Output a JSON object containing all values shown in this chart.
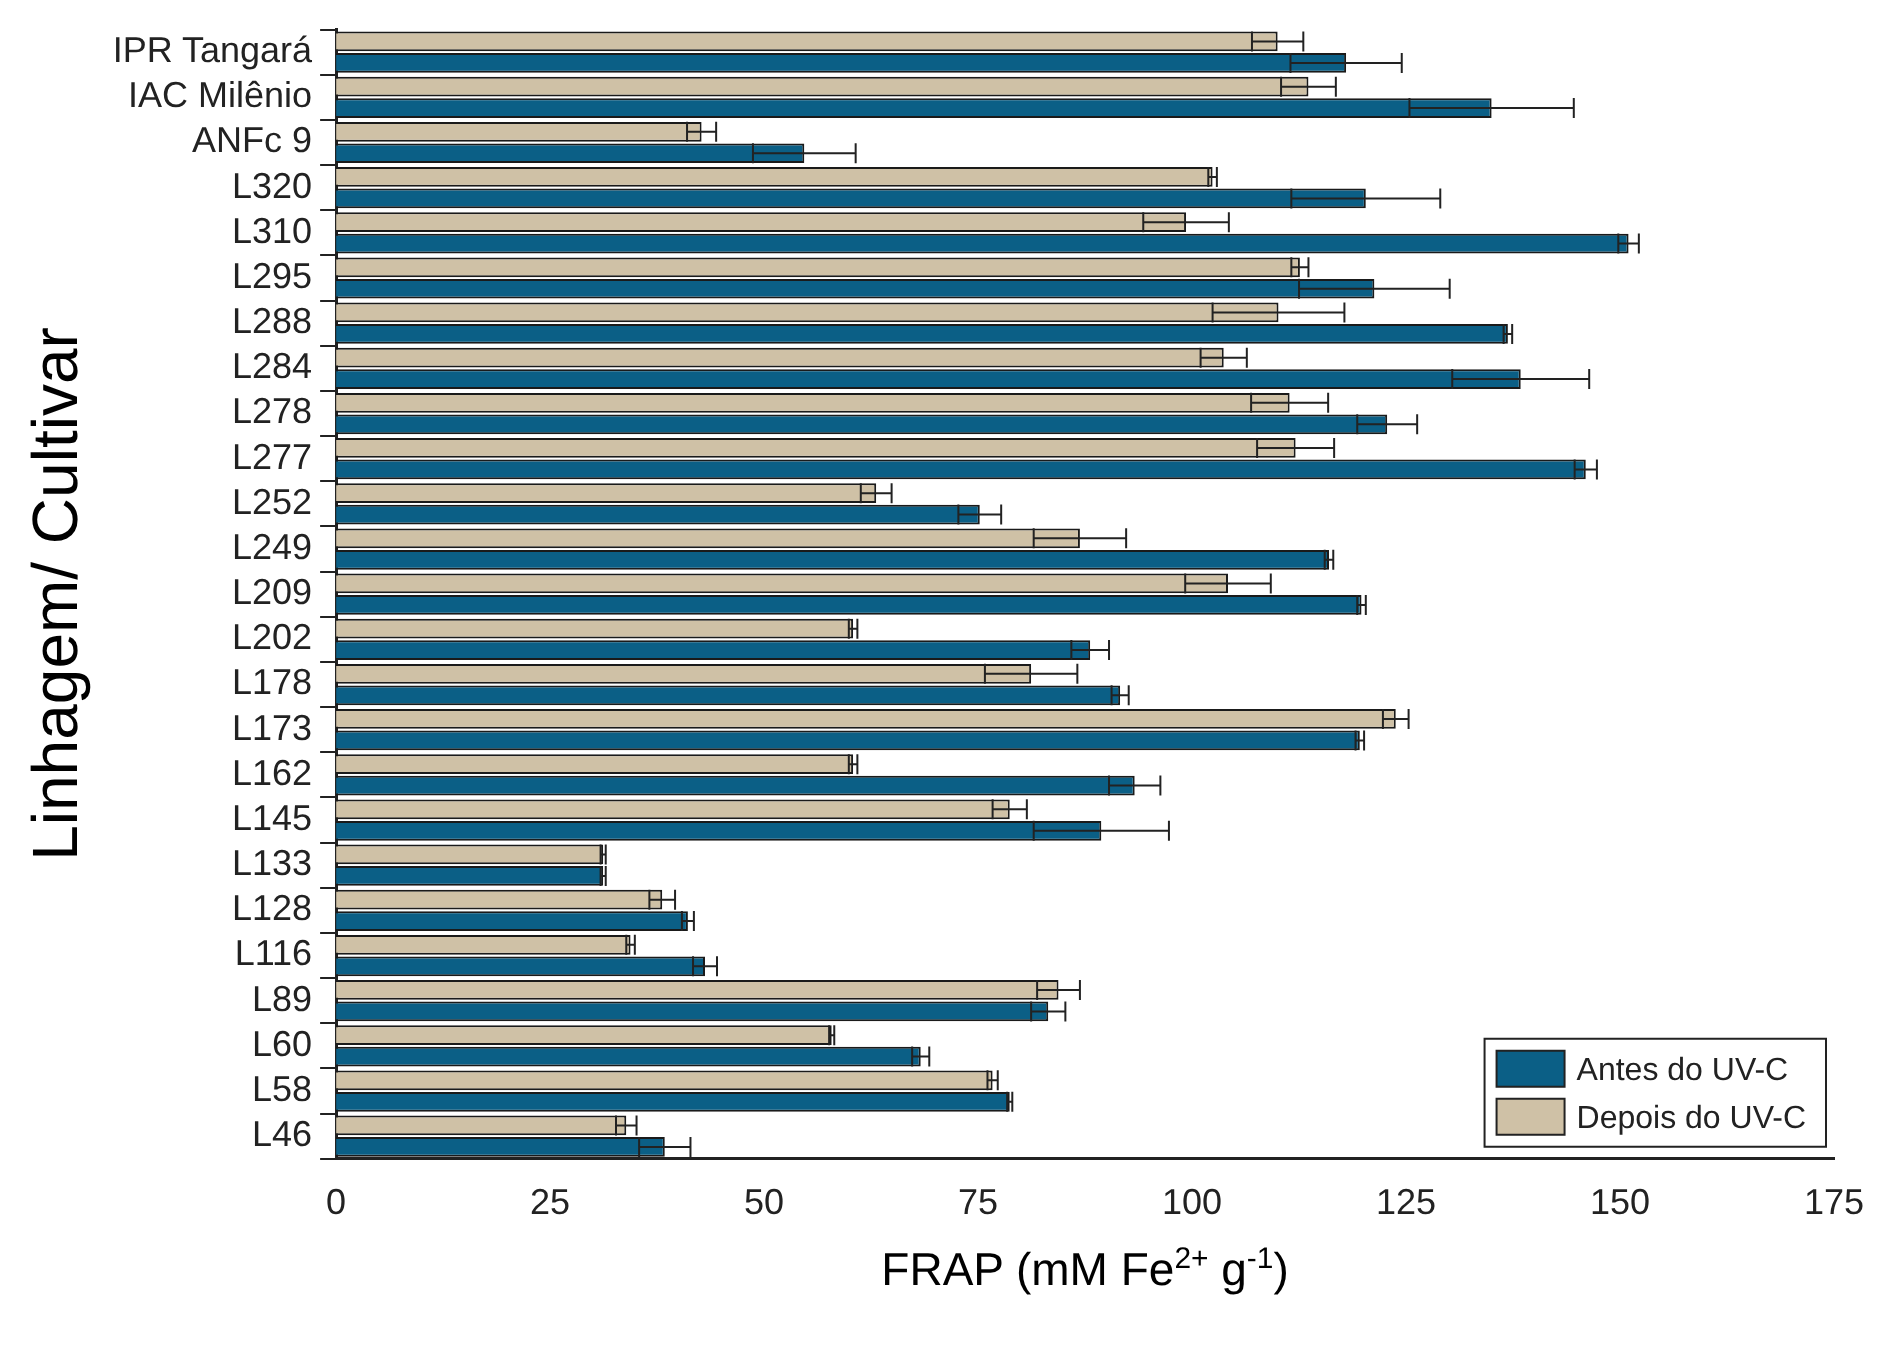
{
  "chart_data": {
    "type": "bar",
    "orientation": "horizontal",
    "xlabel": "FRAP (mM Fe$^{2+}$ g$^{-1}$)",
    "ylabel": "Linhagem/ Cultivar",
    "categories": [
      "IPR Tangará",
      "IAC Milênio",
      "ANFc 9",
      "L320",
      "L310",
      "L295",
      "L288",
      "L284",
      "L278",
      "L277",
      "L252",
      "L249",
      "L209",
      "L202",
      "L178",
      "L173",
      "L162",
      "L145",
      "L133",
      "L128",
      "L116",
      "L89",
      "L60",
      "L58",
      "L46"
    ],
    "series": [
      {
        "name": "Antes do UV-C",
        "color": "#0b5f86",
        "values": [
          118,
          135,
          54.7,
          120.3,
          151,
          121.3,
          136.9,
          138.4,
          122.8,
          146,
          75.2,
          116,
          119.8,
          88.1,
          91.6,
          119.6,
          93.3,
          89.4,
          31.2,
          41.1,
          43.1,
          83.2,
          68.3,
          78.7,
          38.4
        ],
        "errors": [
          6.5,
          9.6,
          6,
          8.7,
          1.2,
          8.8,
          0.5,
          8,
          3.5,
          1.3,
          2.5,
          0.5,
          0.5,
          2.2,
          1,
          0.5,
          3,
          7.9,
          0.3,
          0.7,
          1.4,
          2,
          1,
          0.3,
          3
        ]
      },
      {
        "name": "Depois do UV-C",
        "color": "#cfc1a6",
        "values": [
          110,
          113.6,
          42.7,
          102.4,
          99.3,
          112.6,
          110.1,
          103.7,
          111.4,
          112.1,
          63.1,
          86.9,
          104.2,
          60.4,
          81.2,
          123.8,
          60.4,
          78.7,
          31.2,
          38.1,
          34.4,
          84.4,
          57.9,
          76.7,
          33.9
        ],
        "errors": [
          3,
          3.2,
          1.7,
          0.5,
          5,
          1,
          7.7,
          2.7,
          4.5,
          4.5,
          1.8,
          5.4,
          5,
          0.5,
          5.4,
          1.5,
          0.5,
          2,
          0.3,
          1.5,
          0.5,
          2.5,
          0.3,
          0.6,
          1.2
        ]
      }
    ],
    "xlim": [
      0,
      175
    ],
    "xticks": [
      0,
      25,
      50,
      75,
      100,
      125,
      150,
      175
    ],
    "grid": false,
    "legend": "bottom right"
  }
}
